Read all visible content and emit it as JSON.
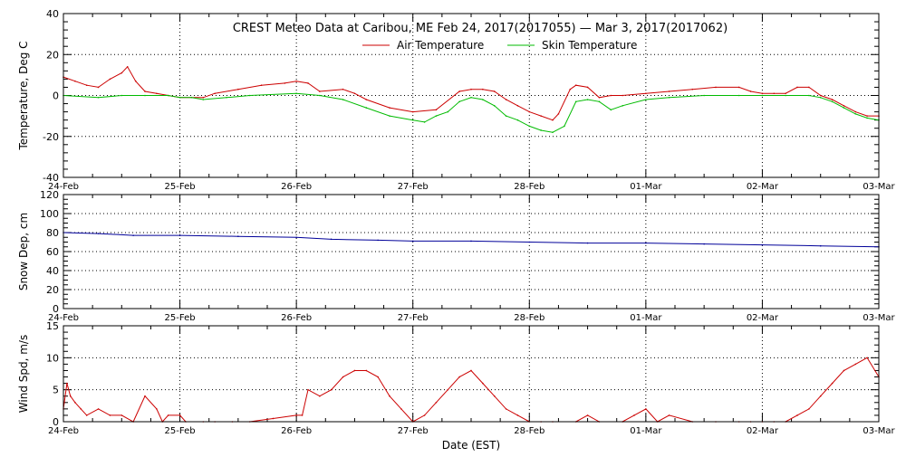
{
  "title": "CREST Meteo Data at Caribou, ME   Feb 24, 2017(2017055) — Mar  3, 2017(2017062)",
  "xlabel": "Date (EST)",
  "x_ticks": [
    "24-Feb",
    "25-Feb",
    "26-Feb",
    "27-Feb",
    "28-Feb",
    "01-Mar",
    "02-Mar",
    "03-Mar"
  ],
  "colors": {
    "air": "#cc0000",
    "skin": "#00bb00",
    "snow": "#000099",
    "wind": "#cc0000"
  },
  "chart_data": [
    {
      "type": "line",
      "title": "CREST Meteo Data at Caribou, ME   Feb 24, 2017(2017055) — Mar  3, 2017(2017062)",
      "xlabel": "",
      "ylabel": "Temperature, Deg C",
      "xlim": [
        0,
        7
      ],
      "ylim": [
        -40,
        40
      ],
      "yticks": [
        40,
        20,
        0,
        -20,
        -40
      ],
      "grid": true,
      "legend_position": "top-center",
      "series": [
        {
          "name": "Air Temperature",
          "color": "#cc0000",
          "x": [
            0,
            0.1,
            0.2,
            0.3,
            0.4,
            0.5,
            0.55,
            0.62,
            0.7,
            0.8,
            0.9,
            1.0,
            1.1,
            1.2,
            1.3,
            1.5,
            1.7,
            1.9,
            2.0,
            2.1,
            2.2,
            2.4,
            2.5,
            2.6,
            2.8,
            3.0,
            3.2,
            3.4,
            3.5,
            3.6,
            3.7,
            3.8,
            3.9,
            4.0,
            4.1,
            4.2,
            4.25,
            4.35,
            4.4,
            4.5,
            4.6,
            4.7,
            4.8,
            5.0,
            5.2,
            5.4,
            5.6,
            5.8,
            5.9,
            6.0,
            6.1,
            6.2,
            6.3,
            6.4,
            6.5,
            6.6,
            6.7,
            6.8,
            6.9,
            7.0
          ],
          "values": [
            9,
            7,
            5,
            4,
            8,
            11,
            14,
            7,
            2,
            1,
            0,
            -1,
            -1,
            -1,
            1,
            3,
            5,
            6,
            7,
            6,
            2,
            3,
            1,
            -2,
            -6,
            -8,
            -7,
            2,
            3,
            3,
            2,
            -2,
            -5,
            -8,
            -10,
            -12,
            -9,
            3,
            5,
            4,
            -1,
            0,
            0,
            1,
            2,
            3,
            4,
            4,
            2,
            1,
            1,
            1,
            4,
            4,
            0,
            -2,
            -5,
            -8,
            -10,
            -10
          ]
        },
        {
          "name": "Skin Temperature",
          "color": "#00bb00",
          "x": [
            0,
            0.3,
            0.5,
            0.7,
            0.9,
            1.0,
            1.1,
            1.2,
            1.4,
            1.6,
            2.0,
            2.2,
            2.4,
            2.6,
            2.8,
            3.0,
            3.1,
            3.2,
            3.3,
            3.4,
            3.5,
            3.6,
            3.7,
            3.8,
            3.9,
            4.0,
            4.1,
            4.2,
            4.3,
            4.4,
            4.5,
            4.6,
            4.7,
            4.8,
            5.0,
            5.2,
            5.5,
            5.8,
            6.0,
            6.2,
            6.4,
            6.5,
            6.6,
            6.7,
            6.8,
            6.9,
            7.0
          ],
          "values": [
            0,
            -1,
            0,
            0,
            0,
            -1,
            -1,
            -2,
            -1,
            0,
            1,
            0,
            -2,
            -6,
            -10,
            -12,
            -13,
            -10,
            -8,
            -3,
            -1,
            -2,
            -5,
            -10,
            -12,
            -15,
            -17,
            -18,
            -15,
            -3,
            -2,
            -3,
            -7,
            -5,
            -2,
            -1,
            0,
            0,
            0,
            0,
            0,
            -1,
            -3,
            -6,
            -9,
            -11,
            -12
          ]
        }
      ]
    },
    {
      "type": "line",
      "xlabel": "",
      "ylabel": "Snow Dep, cm",
      "xlim": [
        0,
        7
      ],
      "ylim": [
        0,
        120
      ],
      "yticks": [
        120,
        100,
        80,
        60,
        40,
        20,
        0
      ],
      "grid": true,
      "series": [
        {
          "color": "#000099",
          "x": [
            0,
            0.3,
            0.6,
            1.0,
            1.5,
            2.0,
            2.3,
            2.7,
            3.0,
            3.5,
            4.0,
            4.5,
            5.0,
            5.5,
            6.0,
            6.5,
            7.0
          ],
          "values": [
            80,
            79,
            77,
            77,
            76,
            75,
            73,
            72,
            71,
            71,
            70,
            69,
            69,
            68,
            67,
            66,
            65
          ]
        }
      ]
    },
    {
      "type": "line",
      "xlabel": "Date (EST)",
      "ylabel": "Wind Spd, m/s",
      "xlim": [
        0,
        7
      ],
      "ylim": [
        0,
        15
      ],
      "yticks": [
        15,
        10,
        5,
        0
      ],
      "grid": true,
      "series": [
        {
          "color": "#cc0000",
          "x": [
            0,
            0.03,
            0.06,
            0.1,
            0.15,
            0.2,
            0.3,
            0.4,
            0.5,
            0.6,
            0.7,
            0.8,
            0.85,
            0.9,
            1.0,
            1.05,
            1.2,
            1.3,
            1.45,
            1.6,
            1.8,
            2.0,
            2.05,
            2.1,
            2.2,
            2.3,
            2.4,
            2.5,
            2.6,
            2.7,
            2.8,
            2.9,
            3.0,
            3.1,
            3.2,
            3.3,
            3.4,
            3.5,
            3.6,
            3.7,
            3.8,
            3.9,
            4.0,
            4.1,
            4.2,
            4.4,
            4.5,
            4.6,
            4.8,
            4.9,
            5.0,
            5.1,
            5.2,
            5.4,
            5.6,
            5.8,
            5.9,
            6.0,
            6.1,
            6.2,
            6.3,
            6.4,
            6.5,
            6.6,
            6.7,
            6.8,
            6.9,
            7.0
          ],
          "values": [
            2,
            6,
            4,
            3,
            2,
            1,
            2,
            1,
            1,
            0,
            4,
            2,
            0,
            1,
            1,
            0,
            0,
            0,
            0,
            0,
            0.5,
            1,
            1,
            5,
            4,
            5,
            7,
            8,
            8,
            7,
            4,
            2,
            0,
            1,
            3,
            5,
            7,
            8,
            6,
            4,
            2,
            1,
            0,
            0,
            0,
            0,
            1,
            0,
            0,
            1,
            2,
            0,
            1,
            0,
            0,
            0,
            0,
            0,
            0,
            0,
            1,
            2,
            4,
            6,
            8,
            9,
            10,
            7
          ]
        }
      ]
    }
  ]
}
